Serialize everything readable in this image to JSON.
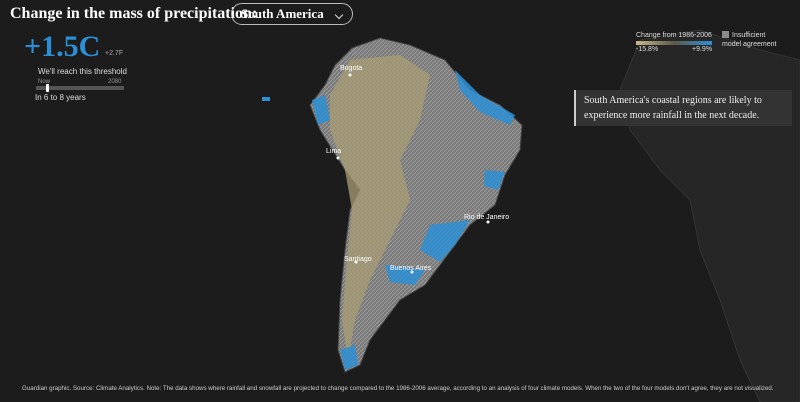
{
  "header": {
    "title": "Change in the mass of precipitation:",
    "region": "South America"
  },
  "threshold": {
    "celsius": "+1.5C",
    "fahrenheit": "+2.7F",
    "caption": "We'll reach this threshold",
    "start": "Now",
    "end": "2080",
    "timing": "In 6 to 8 years"
  },
  "legend": {
    "title": "Change from 1986-2006",
    "min": "-15.8%",
    "max": "+9.9%",
    "insufficient": "Insufficient model agreement"
  },
  "annotation": "South America's coastal regions are likely to experience more rainfall in the next decade.",
  "cities": [
    "Bogota",
    "Lima",
    "Rio de Janeiro",
    "Santiago",
    "Buenos Aires"
  ],
  "footer": "Guardian graphic. Source: Climate Analytics. Note: The data shows where rainfall and snowfall are projected to change compared to the 1986-2006 average, according to an analysis of four climate models. When the two of the four models don't agree, they are not visualized."
}
